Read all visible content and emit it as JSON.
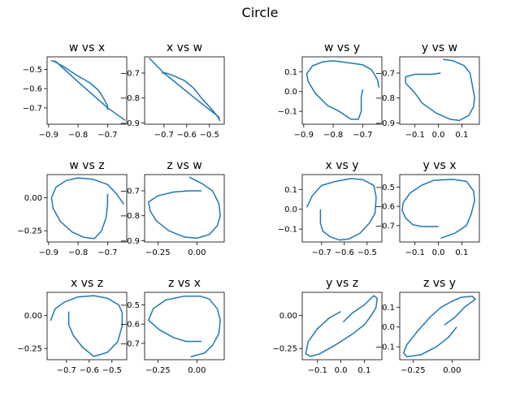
{
  "figure": {
    "title": "Circle",
    "line_color": "#1f77b4"
  },
  "chart_data": [
    {
      "type": "line",
      "title": "w vs x",
      "xlabel": "",
      "ylabel": "",
      "grid": false,
      "xlim": [
        -0.905,
        -0.635
      ],
      "ylim": [
        -0.785,
        -0.435
      ],
      "xticks": [
        -0.9,
        -0.8,
        -0.7
      ],
      "xticklabels": [
        "−0.9",
        "−0.8",
        "−0.7"
      ],
      "yticks": [
        -0.5,
        -0.6,
        -0.7
      ],
      "yticklabels": [
        "−0.5",
        "−0.6",
        "−0.7"
      ],
      "series": [
        {
          "x": [
            -0.7,
            -0.7,
            -0.71,
            -0.73,
            -0.76,
            -0.8,
            -0.85,
            -0.88,
            -0.89,
            -0.875,
            -0.8,
            -0.7,
            -0.64
          ],
          "y": [
            -0.71,
            -0.69,
            -0.66,
            -0.61,
            -0.57,
            -0.535,
            -0.485,
            -0.46,
            -0.455,
            -0.46,
            -0.565,
            -0.7,
            -0.765
          ]
        }
      ]
    },
    {
      "type": "line",
      "title": "x vs w",
      "xlabel": "",
      "ylabel": "",
      "grid": false,
      "xlim": [
        -0.785,
        -0.435
      ],
      "ylim": [
        -0.905,
        -0.635
      ],
      "xticks": [
        -0.7,
        -0.6,
        -0.5
      ],
      "xticklabels": [
        "−0.7",
        "−0.6",
        "−0.5"
      ],
      "yticks": [
        -0.7,
        -0.8,
        -0.9
      ],
      "yticklabels": [
        "−0.7",
        "−0.8",
        "−0.9"
      ],
      "series": [
        {
          "x": [
            -0.71,
            -0.69,
            -0.66,
            -0.61,
            -0.57,
            -0.535,
            -0.485,
            -0.46,
            -0.455,
            -0.46,
            -0.565,
            -0.7,
            -0.765
          ],
          "y": [
            -0.7,
            -0.7,
            -0.71,
            -0.73,
            -0.76,
            -0.8,
            -0.85,
            -0.88,
            -0.89,
            -0.875,
            -0.8,
            -0.7,
            -0.64
          ]
        }
      ]
    },
    {
      "type": "line",
      "title": "w vs y",
      "xlabel": "",
      "ylabel": "",
      "grid": false,
      "xlim": [
        -0.905,
        -0.635
      ],
      "ylim": [
        -0.165,
        0.175
      ],
      "xticks": [
        -0.9,
        -0.8,
        -0.7
      ],
      "xticklabels": [
        "−0.9",
        "−0.8",
        "−0.7"
      ],
      "yticks": [
        0.1,
        0,
        -0.1
      ],
      "yticklabels": [
        "0.1",
        "0.0",
        "−0.1"
      ],
      "series": [
        {
          "x": [
            -0.7,
            -0.705,
            -0.705,
            -0.715,
            -0.74,
            -0.78,
            -0.82,
            -0.86,
            -0.885,
            -0.89,
            -0.87,
            -0.835,
            -0.8,
            -0.75,
            -0.7,
            -0.67,
            -0.65,
            -0.645
          ],
          "y": [
            0.01,
            -0.03,
            -0.1,
            -0.14,
            -0.14,
            -0.1,
            -0.07,
            -0.01,
            0.05,
            0.09,
            0.13,
            0.15,
            0.155,
            0.145,
            0.135,
            0.11,
            0.06,
            0.02
          ]
        }
      ]
    },
    {
      "type": "line",
      "title": "y vs w",
      "xlabel": "",
      "ylabel": "",
      "grid": false,
      "xlim": [
        -0.165,
        0.175
      ],
      "ylim": [
        -0.905,
        -0.635
      ],
      "xticks": [
        -0.1,
        0,
        0.1
      ],
      "xticklabels": [
        "−0.1",
        "0.0",
        "0.1"
      ],
      "yticks": [
        -0.7,
        -0.8,
        -0.9
      ],
      "yticklabels": [
        "−0.7",
        "−0.8",
        "−0.9"
      ],
      "series": [
        {
          "x": [
            0.01,
            -0.03,
            -0.1,
            -0.14,
            -0.14,
            -0.1,
            -0.07,
            -0.01,
            0.05,
            0.09,
            0.13,
            0.15,
            0.155,
            0.145,
            0.135,
            0.11,
            0.06,
            0.02
          ],
          "y": [
            -0.7,
            -0.705,
            -0.705,
            -0.715,
            -0.74,
            -0.78,
            -0.82,
            -0.86,
            -0.885,
            -0.89,
            -0.87,
            -0.835,
            -0.8,
            -0.75,
            -0.7,
            -0.67,
            -0.65,
            -0.645
          ]
        }
      ]
    },
    {
      "type": "line",
      "title": "w vs z",
      "xlabel": "",
      "ylabel": "",
      "grid": false,
      "xlim": [
        -0.905,
        -0.635
      ],
      "ylim": [
        -0.335,
        0.175
      ],
      "xticks": [
        -0.9,
        -0.8,
        -0.7
      ],
      "xticklabels": [
        "−0.9",
        "−0.8",
        "−0.7"
      ],
      "yticks": [
        0,
        -0.25
      ],
      "yticklabels": [
        "0.00",
        "−0.25"
      ],
      "series": [
        {
          "x": [
            -0.7,
            -0.7,
            -0.705,
            -0.72,
            -0.745,
            -0.78,
            -0.82,
            -0.86,
            -0.885,
            -0.89,
            -0.875,
            -0.84,
            -0.8,
            -0.75,
            -0.7,
            -0.67,
            -0.645
          ],
          "y": [
            0.03,
            -0.05,
            -0.15,
            -0.25,
            -0.31,
            -0.3,
            -0.26,
            -0.18,
            -0.08,
            0.0,
            0.08,
            0.13,
            0.15,
            0.14,
            0.1,
            0.03,
            -0.05
          ]
        }
      ]
    },
    {
      "type": "line",
      "title": "z vs w",
      "xlabel": "",
      "ylabel": "",
      "grid": false,
      "xlim": [
        -0.335,
        0.175
      ],
      "ylim": [
        -0.905,
        -0.635
      ],
      "xticks": [
        -0.25,
        0
      ],
      "xticklabels": [
        "−0.25",
        "0.00"
      ],
      "yticks": [
        -0.7,
        -0.8,
        -0.9
      ],
      "yticklabels": [
        "−0.7",
        "−0.8",
        "−0.9"
      ],
      "series": [
        {
          "x": [
            0.03,
            -0.05,
            -0.15,
            -0.25,
            -0.31,
            -0.3,
            -0.26,
            -0.18,
            -0.08,
            0.0,
            0.08,
            0.13,
            0.15,
            0.14,
            0.1,
            0.03,
            -0.05
          ],
          "y": [
            -0.7,
            -0.7,
            -0.705,
            -0.72,
            -0.745,
            -0.78,
            -0.82,
            -0.86,
            -0.885,
            -0.89,
            -0.875,
            -0.84,
            -0.8,
            -0.75,
            -0.7,
            -0.67,
            -0.645
          ]
        }
      ]
    },
    {
      "type": "line",
      "title": "x vs y",
      "xlabel": "",
      "ylabel": "",
      "grid": false,
      "xlim": [
        -0.785,
        -0.435
      ],
      "ylim": [
        -0.165,
        0.175
      ],
      "xticks": [
        -0.7,
        -0.6,
        -0.5
      ],
      "xticklabels": [
        "−0.7",
        "−0.6",
        "−0.5"
      ],
      "yticks": [
        0.1,
        0,
        -0.1
      ],
      "yticklabels": [
        "0.1",
        "0.0",
        "−0.1"
      ],
      "series": [
        {
          "x": [
            -0.705,
            -0.705,
            -0.695,
            -0.66,
            -0.62,
            -0.58,
            -0.53,
            -0.49,
            -0.465,
            -0.46,
            -0.47,
            -0.52,
            -0.57,
            -0.64,
            -0.7,
            -0.74,
            -0.765
          ],
          "y": [
            0.0,
            -0.07,
            -0.11,
            -0.14,
            -0.155,
            -0.15,
            -0.12,
            -0.07,
            -0.02,
            0.06,
            0.12,
            0.15,
            0.155,
            0.14,
            0.12,
            0.07,
            0.01
          ]
        }
      ]
    },
    {
      "type": "line",
      "title": "y vs x",
      "xlabel": "",
      "ylabel": "",
      "grid": false,
      "xlim": [
        -0.165,
        0.175
      ],
      "ylim": [
        -0.785,
        -0.435
      ],
      "xticks": [
        -0.1,
        0,
        0.1
      ],
      "xticklabels": [
        "−0.1",
        "0.0",
        "0.1"
      ],
      "yticks": [
        -0.5,
        -0.6,
        -0.7
      ],
      "yticklabels": [
        "−0.5",
        "−0.6",
        "−0.7"
      ],
      "series": [
        {
          "x": [
            0.0,
            -0.07,
            -0.11,
            -0.14,
            -0.155,
            -0.15,
            -0.12,
            -0.07,
            -0.02,
            0.06,
            0.12,
            0.15,
            0.155,
            0.14,
            0.12,
            0.07,
            0.01
          ],
          "y": [
            -0.705,
            -0.705,
            -0.695,
            -0.66,
            -0.62,
            -0.58,
            -0.53,
            -0.49,
            -0.465,
            -0.46,
            -0.47,
            -0.52,
            -0.57,
            -0.64,
            -0.7,
            -0.74,
            -0.765
          ]
        }
      ]
    },
    {
      "type": "line",
      "title": "x vs z",
      "xlabel": "",
      "ylabel": "",
      "grid": false,
      "xlim": [
        -0.785,
        -0.435
      ],
      "ylim": [
        -0.335,
        0.175
      ],
      "xticks": [
        -0.7,
        -0.6,
        -0.5
      ],
      "xticklabels": [
        "−0.7",
        "−0.6",
        "−0.5"
      ],
      "yticks": [
        0,
        -0.25
      ],
      "yticklabels": [
        "0.00",
        "−0.25"
      ],
      "series": [
        {
          "x": [
            -0.69,
            -0.69,
            -0.67,
            -0.63,
            -0.58,
            -0.52,
            -0.475,
            -0.455,
            -0.455,
            -0.47,
            -0.52,
            -0.58,
            -0.65,
            -0.71,
            -0.75,
            -0.77
          ],
          "y": [
            0.03,
            -0.07,
            -0.15,
            -0.24,
            -0.31,
            -0.28,
            -0.2,
            -0.08,
            0.02,
            0.08,
            0.13,
            0.15,
            0.14,
            0.1,
            0.05,
            -0.04
          ]
        }
      ]
    },
    {
      "type": "line",
      "title": "z vs x",
      "xlabel": "",
      "ylabel": "",
      "grid": false,
      "xlim": [
        -0.335,
        0.175
      ],
      "ylim": [
        -0.785,
        -0.435
      ],
      "xticks": [
        -0.25,
        0
      ],
      "xticklabels": [
        "−0.25",
        "0.00"
      ],
      "yticks": [
        -0.5,
        -0.6,
        -0.7
      ],
      "yticklabels": [
        "−0.5",
        "−0.6",
        "−0.7"
      ],
      "series": [
        {
          "x": [
            0.03,
            -0.07,
            -0.15,
            -0.24,
            -0.31,
            -0.28,
            -0.2,
            -0.08,
            0.02,
            0.08,
            0.13,
            0.15,
            0.14,
            0.1,
            0.05,
            -0.04
          ],
          "y": [
            -0.69,
            -0.69,
            -0.67,
            -0.63,
            -0.58,
            -0.52,
            -0.475,
            -0.455,
            -0.455,
            -0.47,
            -0.52,
            -0.58,
            -0.65,
            -0.71,
            -0.75,
            -0.77
          ]
        }
      ]
    },
    {
      "type": "line",
      "title": "y vs z",
      "xlabel": "",
      "ylabel": "",
      "grid": false,
      "xlim": [
        -0.165,
        0.175
      ],
      "ylim": [
        -0.335,
        0.175
      ],
      "xticks": [
        -0.1,
        0,
        0.1
      ],
      "xticklabels": [
        "−0.1",
        "0.0",
        "0.1"
      ],
      "yticks": [
        0,
        -0.25
      ],
      "yticklabels": [
        "0.00",
        "−0.25"
      ],
      "series": [
        {
          "x": [
            0.0,
            -0.05,
            -0.1,
            -0.14,
            -0.15,
            -0.13,
            -0.09,
            -0.02,
            0.05,
            0.1,
            0.13,
            0.15,
            0.155,
            0.14,
            0.1,
            0.05,
            0.01
          ],
          "y": [
            0.03,
            -0.02,
            -0.1,
            -0.2,
            -0.29,
            -0.31,
            -0.29,
            -0.22,
            -0.14,
            -0.07,
            0.0,
            0.06,
            0.13,
            0.15,
            0.08,
            0.02,
            -0.05
          ]
        }
      ]
    },
    {
      "type": "line",
      "title": "z vs y",
      "xlabel": "",
      "ylabel": "",
      "grid": false,
      "xlim": [
        -0.335,
        0.175
      ],
      "ylim": [
        -0.165,
        0.175
      ],
      "xticks": [
        -0.25,
        0
      ],
      "xticklabels": [
        "−0.25",
        "0.00"
      ],
      "yticks": [
        0.1,
        0,
        -0.1
      ],
      "yticklabels": [
        "0.1",
        "0.0",
        "−0.1"
      ],
      "series": [
        {
          "x": [
            0.03,
            -0.02,
            -0.1,
            -0.2,
            -0.29,
            -0.31,
            -0.29,
            -0.22,
            -0.14,
            -0.07,
            0.0,
            0.06,
            0.13,
            0.15,
            0.08,
            0.02,
            -0.05
          ],
          "y": [
            0.0,
            -0.05,
            -0.1,
            -0.14,
            -0.15,
            -0.13,
            -0.09,
            -0.02,
            0.05,
            0.1,
            0.13,
            0.15,
            0.155,
            0.14,
            0.1,
            0.05,
            0.01
          ]
        }
      ]
    }
  ]
}
